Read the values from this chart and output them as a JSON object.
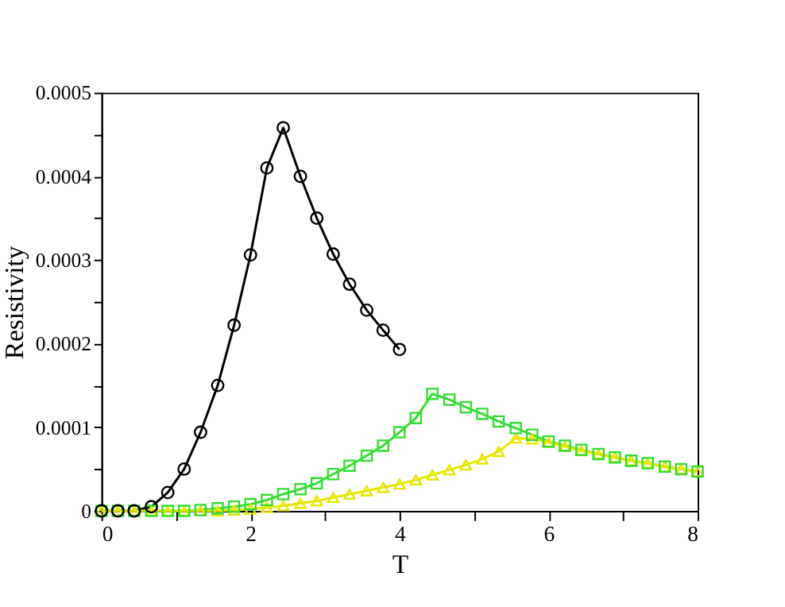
{
  "chart_data": {
    "type": "line",
    "xlabel": "T",
    "ylabel": "Resistivity",
    "xlim": [
      0,
      8
    ],
    "ylim": [
      0,
      0.0005
    ],
    "xticks": [
      0,
      {
        "value": 1,
        "label": null
      },
      2,
      {
        "value": 3,
        "label": null
      },
      4,
      {
        "value": 5,
        "label": null
      },
      6,
      {
        "value": 7,
        "label": null
      },
      8
    ],
    "yticks": [
      0,
      {
        "value": 5e-05,
        "label": null
      },
      0.0001,
      {
        "value": 0.00015,
        "label": null
      },
      0.0002,
      {
        "value": 0.00025,
        "label": null
      },
      0.0003,
      {
        "value": 0.00035,
        "label": null
      },
      0.0004,
      {
        "value": 0.00045,
        "label": null
      },
      0.0005
    ],
    "grid": false,
    "line_style": "solid",
    "series": [
      {
        "color": "#000000",
        "marker": "circle",
        "x": [
          0,
          0.22,
          0.44,
          0.67,
          0.89,
          1.11,
          1.33,
          1.56,
          1.78,
          2.0,
          2.22,
          2.44,
          2.67,
          2.89,
          3.11,
          3.33,
          3.56,
          3.78,
          4.0
        ],
        "values": [
          0,
          0,
          0,
          5e-06,
          2.2e-05,
          5e-05,
          9.4e-05,
          0.00015,
          0.000222,
          0.000306,
          0.00041,
          0.000458,
          0.0004,
          0.00035,
          0.000307,
          0.000271,
          0.00024,
          0.000216,
          0.000193
        ]
      },
      {
        "color": "#33dd33",
        "marker": "square",
        "x": [
          0,
          0.22,
          0.44,
          0.67,
          0.89,
          1.11,
          1.33,
          1.56,
          1.78,
          2.0,
          2.22,
          2.44,
          2.67,
          2.89,
          3.11,
          3.33,
          3.56,
          3.78,
          4.0,
          4.22,
          4.44,
          4.67,
          4.89,
          5.11,
          5.33,
          5.56,
          5.78,
          6.0,
          6.22,
          6.44,
          6.67,
          6.89,
          7.11,
          7.33,
          7.56,
          7.78,
          8.0
        ],
        "values": [
          0,
          0,
          0,
          0,
          0,
          0,
          1e-06,
          3e-06,
          5e-06,
          8e-06,
          1.3e-05,
          2e-05,
          2.6e-05,
          3.3e-05,
          4.4e-05,
          5.4e-05,
          6.6e-05,
          7.8e-05,
          9.4e-05,
          0.000111,
          0.00014,
          0.000133,
          0.000124,
          0.000116,
          0.000107,
          9.9e-05,
          9.1e-05,
          8.3e-05,
          7.8e-05,
          7.3e-05,
          6.8e-05,
          6.4e-05,
          6e-05,
          5.7e-05,
          5.3e-05,
          5e-05,
          4.7e-05
        ]
      },
      {
        "color": "#e6e600",
        "marker": "triangle",
        "x": [
          0,
          0.22,
          0.44,
          0.67,
          0.89,
          1.11,
          1.33,
          1.56,
          1.78,
          2.0,
          2.22,
          2.44,
          2.67,
          2.89,
          3.11,
          3.33,
          3.56,
          3.78,
          4.0,
          4.22,
          4.44,
          4.67,
          4.89,
          5.11,
          5.33,
          5.56,
          5.78,
          6.0,
          6.22,
          6.44,
          6.67,
          6.89,
          7.11,
          7.33,
          7.56,
          7.78,
          8.0
        ],
        "values": [
          0,
          0,
          0,
          0,
          0,
          0,
          0,
          0,
          1e-06,
          2e-06,
          4e-06,
          6e-06,
          9e-06,
          1.2e-05,
          1.6e-05,
          2e-05,
          2.4e-05,
          2.8e-05,
          3.2e-05,
          3.7e-05,
          4.3e-05,
          4.9e-05,
          5.5e-05,
          6.2e-05,
          7.1e-05,
          8.7e-05,
          8.6e-05,
          8.2e-05,
          7.7e-05,
          7.2e-05,
          6.8e-05,
          6.4e-05,
          6e-05,
          5.7e-05,
          5.3e-05,
          5e-05,
          4.7e-05
        ]
      }
    ]
  }
}
